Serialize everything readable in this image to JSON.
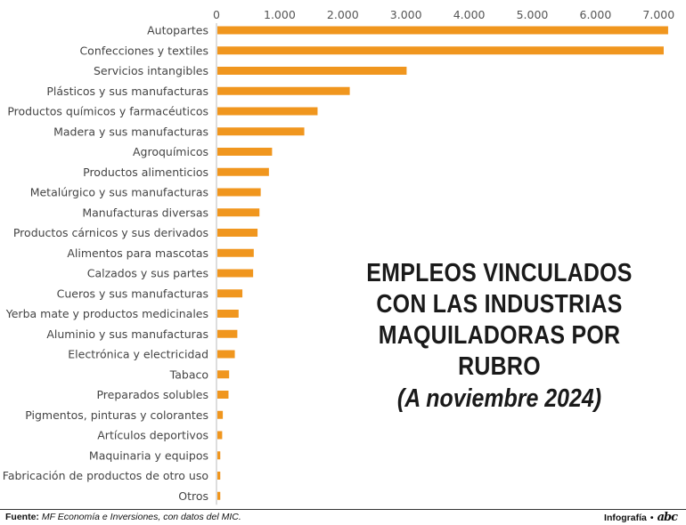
{
  "chart_data": {
    "type": "bar",
    "orientation": "horizontal",
    "title": "EMPLEOS VINCULADOS CON LAS INDUSTRIAS MAQUILADORAS POR RUBRO",
    "subtitle": "(A noviembre 2024)",
    "xlim": [
      0,
      7000
    ],
    "ticks": [
      "0",
      "1.000",
      "2.000",
      "3.000",
      "4.000",
      "5.000",
      "6.000",
      "7.000"
    ],
    "tick_values": [
      0,
      1000,
      2000,
      3000,
      4000,
      5000,
      6000,
      7000
    ],
    "bar_color": "#F0961E",
    "categories": [
      "Autopartes",
      "Confecciones y textiles",
      "Servicios intangibles",
      "Plásticos y sus manufacturas",
      "Productos químicos y farmacéuticos",
      "Madera y sus manufacturas",
      "Agroquímicos",
      "Productos alimenticios",
      "Metalúrgico y sus manufacturas",
      "Manufacturas diversas",
      "Productos cárnicos y sus derivados",
      "Alimentos para mascotas",
      "Calzados y sus partes",
      "Cueros y sus manufacturas",
      "Yerba mate y productos medicinales",
      "Aluminio y sus manufacturas",
      "Electrónica y electricidad",
      "Tabaco",
      "Preparados solubles",
      "Pigmentos, pinturas y colorantes",
      "Artículos deportivos",
      "Maquinaria y equipos",
      "Fabricación de productos de otro uso",
      "Otros"
    ],
    "values": [
      7150,
      7080,
      3010,
      2110,
      1600,
      1390,
      880,
      830,
      700,
      680,
      650,
      590,
      580,
      410,
      350,
      330,
      290,
      200,
      190,
      100,
      90,
      60,
      60,
      60
    ]
  },
  "title_lines": [
    "EMPLEOS VINCULADOS",
    "CON LAS INDUSTRIAS",
    "MAQUILADORAS POR RUBRO"
  ],
  "footer": {
    "source_label": "Fuente:",
    "source_text": "MF Economía e Inversiones, con datos del MIC.",
    "credit": "Infografía",
    "credit_separator": "•",
    "logo": "abc"
  }
}
